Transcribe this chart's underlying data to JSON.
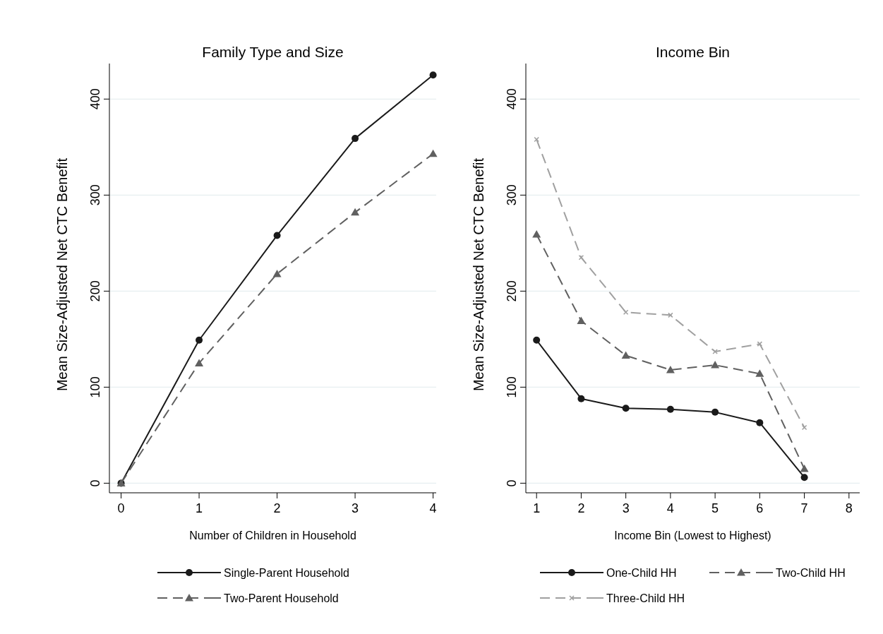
{
  "chart_data": [
    {
      "type": "line",
      "title": "Family Type and Size",
      "xlabel": "Number of Children in Household",
      "ylabel": "Mean Size-Adjusted Net CTC Benefit",
      "x": [
        0,
        1,
        2,
        3,
        4
      ],
      "xlim": [
        -0.15,
        4.04
      ],
      "xticks": [
        0,
        1,
        2,
        3,
        4
      ],
      "ylim": [
        -10,
        437
      ],
      "yticks": [
        0,
        100,
        200,
        300,
        400
      ],
      "grid": "y",
      "legend": "bottom",
      "series": [
        {
          "name": "Single-Parent Household",
          "color": "#1a1a1a",
          "marker": "circle",
          "line_style": "solid",
          "values": [
            0,
            149,
            258,
            359,
            425
          ]
        },
        {
          "name": "Two-Parent Household",
          "color": "#606060",
          "marker": "triangle",
          "line_style": "dashed",
          "values": [
            0,
            125,
            218,
            282,
            343
          ]
        }
      ]
    },
    {
      "type": "line",
      "title": "Income Bin",
      "xlabel": "Income Bin (Lowest to Highest)",
      "ylabel": "Mean Size-Adjusted Net CTC Benefit",
      "x": [
        1,
        2,
        3,
        4,
        5,
        6,
        7
      ],
      "xlim": [
        0.76,
        8.24
      ],
      "xticks": [
        1,
        2,
        3,
        4,
        5,
        6,
        7,
        8
      ],
      "ylim": [
        -10,
        437
      ],
      "yticks": [
        0,
        100,
        200,
        300,
        400
      ],
      "grid": "y",
      "legend": "bottom",
      "series": [
        {
          "name": "One-Child HH",
          "color": "#1a1a1a",
          "marker": "circle",
          "line_style": "solid",
          "values": [
            149,
            88,
            78,
            77,
            74,
            63,
            6
          ]
        },
        {
          "name": "Two-Child HH",
          "color": "#606060",
          "marker": "triangle",
          "line_style": "dashed",
          "values": [
            259,
            169,
            133,
            118,
            123,
            114,
            15
          ]
        },
        {
          "name": "Three-Child HH",
          "color": "#a0a0a0",
          "marker": "cross",
          "line_style": "dashed",
          "values": [
            358,
            235,
            178,
            175,
            137,
            145,
            58
          ]
        }
      ]
    }
  ]
}
